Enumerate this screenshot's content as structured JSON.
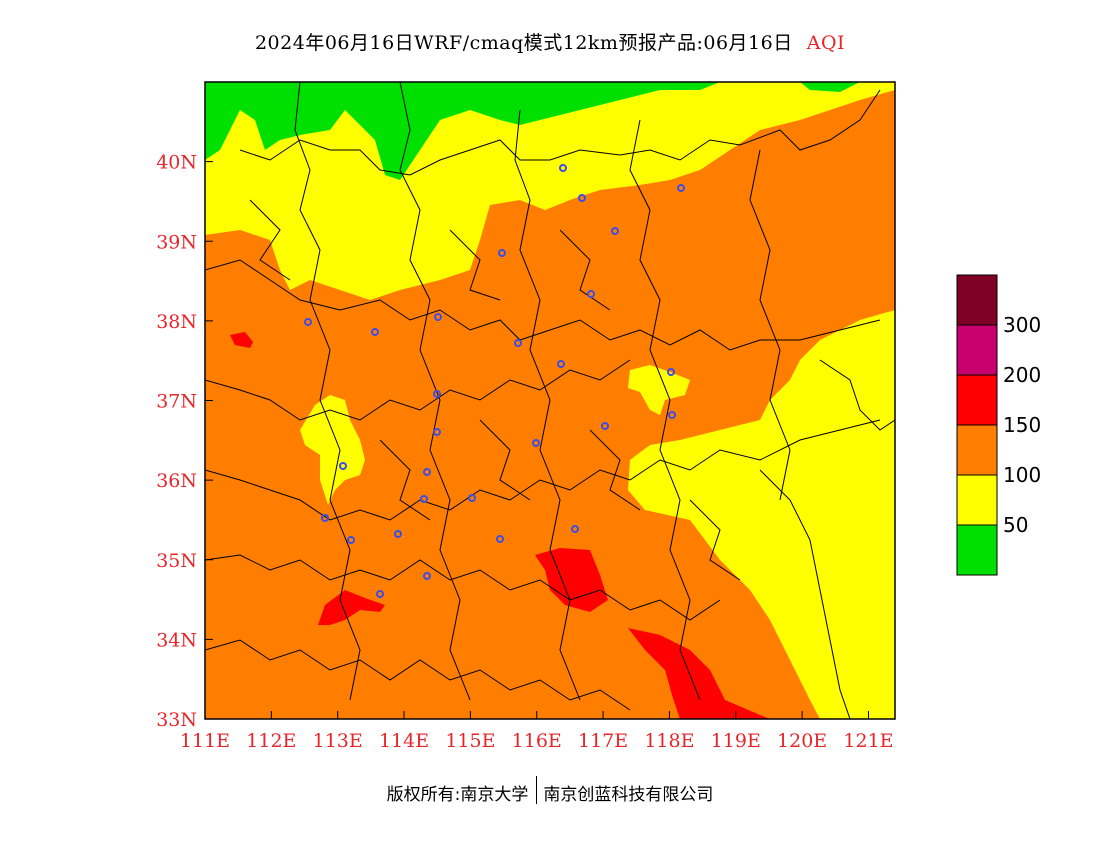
{
  "title": {
    "main": "2024年06月16日WRF/cmaq模式12km预报产品:06月16日",
    "variable": "AQI"
  },
  "map": {
    "x_ticks": [
      "111E",
      "112E",
      "113E",
      "114E",
      "115E",
      "116E",
      "117E",
      "118E",
      "119E",
      "120E",
      "121E"
    ],
    "y_ticks": [
      "33N",
      "34N",
      "35N",
      "36N",
      "37N",
      "38N",
      "39N",
      "40N"
    ],
    "lon_range": [
      111,
      121.4
    ],
    "lat_range": [
      33,
      41
    ],
    "colors": {
      "good": "#00e000",
      "moderate": "#ffff00",
      "unhealthy_sensitive": "#ff7e00",
      "unhealthy": "#ff0000",
      "very_unhealthy": "#c8006e",
      "hazardous": "#7e0023",
      "boundary": "#000000",
      "station": "#3b4ee8"
    }
  },
  "legend": {
    "labels": [
      "50",
      "100",
      "150",
      "200",
      "300"
    ],
    "colors": [
      "#00e000",
      "#ffff00",
      "#ff7e00",
      "#ff0000",
      "#c8006e",
      "#7e0023"
    ]
  },
  "footer": {
    "left": "版权所有:南京大学",
    "right": "南京创蓝科技有限公司"
  }
}
